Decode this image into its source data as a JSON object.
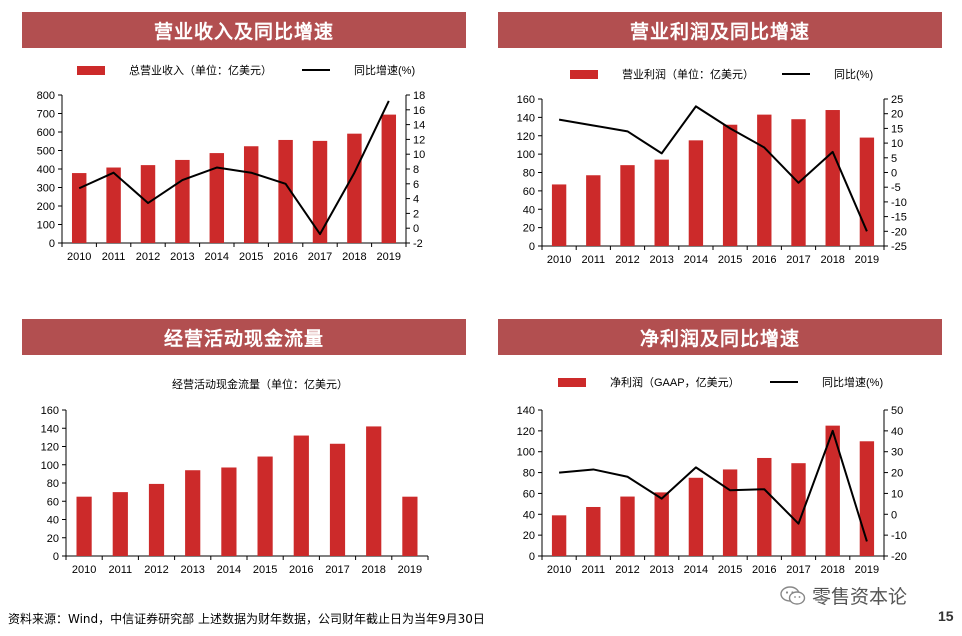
{
  "panels": [
    {
      "title": "营业收入及同比增速",
      "chart_data": {
        "type": "bar",
        "categories": [
          "2010",
          "2011",
          "2012",
          "2013",
          "2014",
          "2015",
          "2016",
          "2017",
          "2018",
          "2019"
        ],
        "series": [
          {
            "name": "总营业收入（单位：亿美元）",
            "type": "bar",
            "axis": "left",
            "values": [
              378,
              408,
              421,
              449,
              486,
              523,
              557,
              552,
              591,
              694
            ]
          },
          {
            "name": "同比增速(%)",
            "type": "line",
            "axis": "right",
            "values": [
              5.4,
              7.5,
              3.4,
              6.5,
              8.2,
              7.5,
              6.0,
              -0.8,
              7.5,
              17.2
            ]
          }
        ],
        "ylim_left": [
          0,
          800
        ],
        "yticks_left": [
          0,
          100,
          200,
          300,
          400,
          500,
          600,
          700,
          800
        ],
        "ylim_right": [
          -2,
          18
        ],
        "yticks_right": [
          -2,
          0,
          2,
          4,
          6,
          8,
          10,
          12,
          14,
          16,
          18
        ],
        "legend": "top"
      }
    },
    {
      "title": "营业利润及同比增速",
      "chart_data": {
        "type": "bar",
        "categories": [
          "2010",
          "2011",
          "2012",
          "2013",
          "2014",
          "2015",
          "2016",
          "2017",
          "2018",
          "2019"
        ],
        "series": [
          {
            "name": "营业利润（单位：亿美元）",
            "type": "bar",
            "axis": "left",
            "values": [
              67,
              77,
              88,
              94,
              115,
              132,
              143,
              138,
              148,
              118
            ]
          },
          {
            "name": "同比(%)",
            "type": "line",
            "axis": "right",
            "values": [
              18,
              16,
              14,
              6.5,
              22.5,
              15,
              8.5,
              -3.5,
              7,
              -20
            ]
          }
        ],
        "ylim_left": [
          0,
          160
        ],
        "yticks_left": [
          0,
          20,
          40,
          60,
          80,
          100,
          120,
          140,
          160
        ],
        "ylim_right": [
          -25,
          25
        ],
        "yticks_right": [
          -25,
          -20,
          -15,
          -10,
          -5,
          0,
          5,
          10,
          15,
          20,
          25
        ],
        "legend": "top"
      }
    },
    {
      "title": "经营活动现金流量",
      "chart_data": {
        "type": "bar",
        "categories": [
          "2010",
          "2011",
          "2012",
          "2013",
          "2014",
          "2015",
          "2016",
          "2017",
          "2018",
          "2019"
        ],
        "series": [
          {
            "name": "经营活动现金流量（单位：亿美元）",
            "type": "bar",
            "axis": "left",
            "values": [
              65,
              70,
              79,
              94,
              97,
              109,
              132,
              123,
              142,
              65
            ]
          }
        ],
        "ylim_left": [
          0,
          160
        ],
        "yticks_left": [
          0,
          20,
          40,
          60,
          80,
          100,
          120,
          140,
          160
        ],
        "legend": "top"
      }
    },
    {
      "title": "净利润及同比增速",
      "chart_data": {
        "type": "bar",
        "categories": [
          "2010",
          "2011",
          "2012",
          "2013",
          "2014",
          "2015",
          "2016",
          "2017",
          "2018",
          "2019"
        ],
        "series": [
          {
            "name": "净利润（GAAP，亿美元）",
            "type": "bar",
            "axis": "left",
            "values": [
              39,
              47,
              57,
              61,
              75,
              83,
              94,
              89,
              125,
              110
            ]
          },
          {
            "name": "同比增速(%)",
            "type": "line",
            "axis": "right",
            "values": [
              20,
              21.5,
              18,
              7.5,
              22.5,
              11.5,
              12,
              -4.5,
              40,
              -13
            ]
          }
        ],
        "ylim_left": [
          0,
          140
        ],
        "yticks_left": [
          0,
          20,
          40,
          60,
          80,
          100,
          120,
          140
        ],
        "ylim_right": [
          -20,
          50
        ],
        "yticks_right": [
          -20,
          -10,
          0,
          10,
          20,
          30,
          40,
          50
        ],
        "legend": "top"
      }
    }
  ],
  "colors": {
    "bar": "#cc2a2a",
    "line": "#000000",
    "header": "#b24f50"
  },
  "footer": "资料来源：Wind，中信证券研究部 上述数据为财年数据，公司财年截止日为当年9月30日",
  "brand": "零售资本论",
  "brand_icon": "wechat-icon",
  "page_number": "15"
}
